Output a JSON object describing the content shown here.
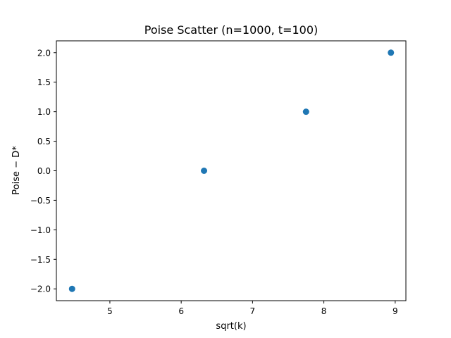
{
  "chart_data": {
    "type": "scatter",
    "title": "Poise Scatter (n=1000, t=100)",
    "xlabel": "sqrt(k)",
    "ylabel": "Poise − D*",
    "xlim": [
      4.25,
      9.15
    ],
    "ylim": [
      -2.2,
      2.2
    ],
    "xticks": [
      5,
      6,
      7,
      8,
      9
    ],
    "xtick_labels": [
      "5",
      "6",
      "7",
      "8",
      "9"
    ],
    "yticks": [
      -2.0,
      -1.5,
      -1.0,
      -0.5,
      0.0,
      0.5,
      1.0,
      1.5,
      2.0
    ],
    "ytick_labels": [
      "−2.0",
      "−1.5",
      "−1.0",
      "−0.5",
      "0.0",
      "0.5",
      "1.0",
      "1.5",
      "2.0"
    ],
    "grid": false,
    "series": [
      {
        "color": "#1f77b4",
        "x": [
          4.47,
          6.32,
          7.75,
          8.94
        ],
        "y": [
          -2,
          0,
          1,
          2
        ]
      }
    ]
  }
}
